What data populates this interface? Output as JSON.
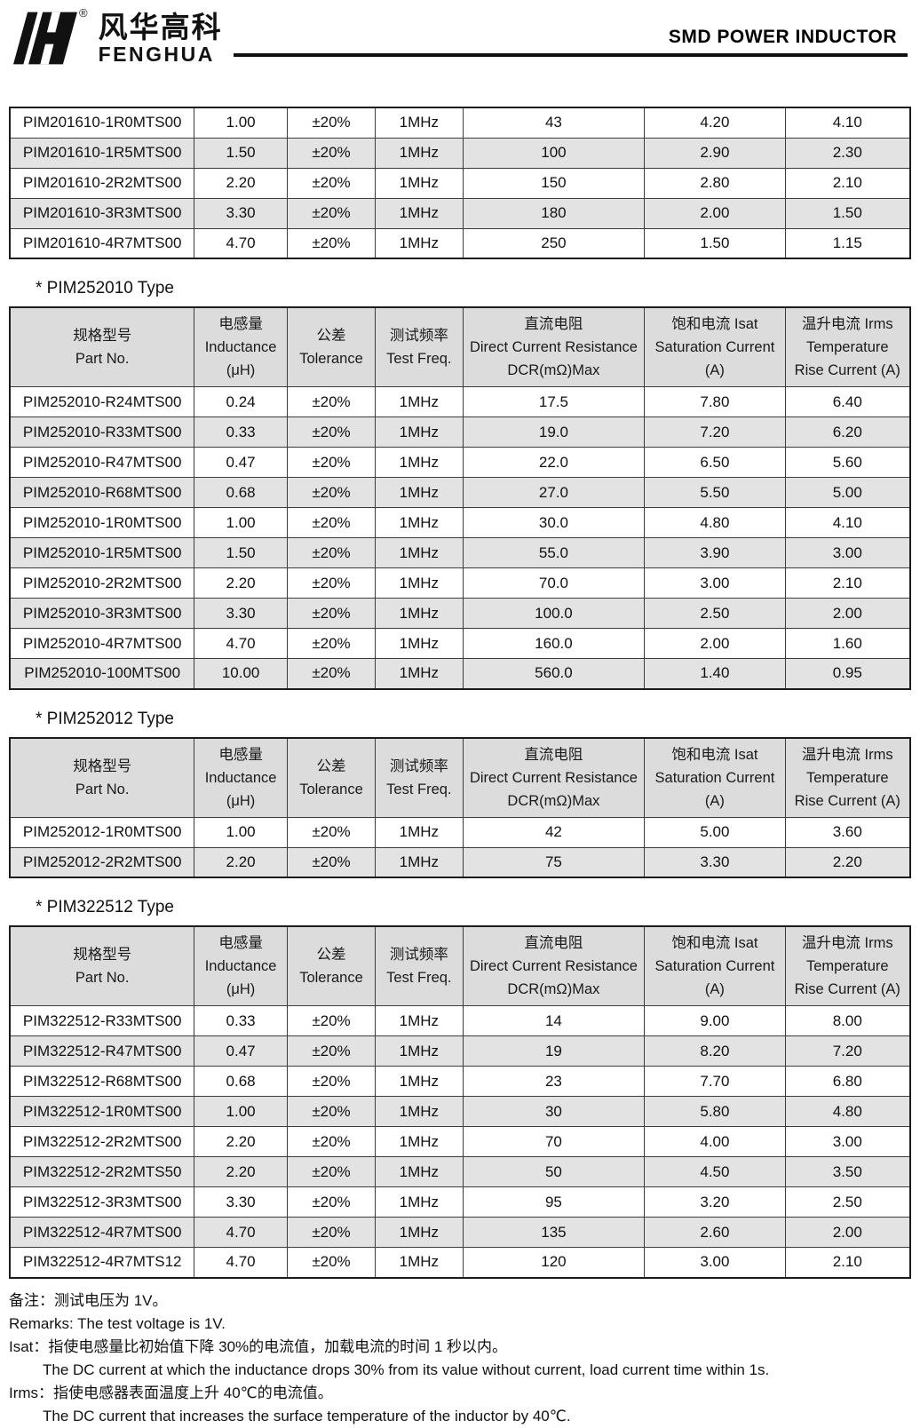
{
  "header": {
    "brand_cn": "风华高科",
    "brand_en": "FENGHUA",
    "registered_mark": "®",
    "title": "SMD POWER INDUCTOR"
  },
  "columns": [
    {
      "key": "part-no",
      "lines": [
        "规格型号",
        "Part No."
      ]
    },
    {
      "key": "inductance",
      "lines": [
        "电感量",
        "Inductance",
        "(μH)"
      ]
    },
    {
      "key": "tolerance",
      "lines": [
        "公差",
        "Tolerance"
      ]
    },
    {
      "key": "test-freq",
      "lines": [
        "测试频率",
        "Test Freq."
      ]
    },
    {
      "key": "dcr",
      "lines": [
        "直流电阻",
        "Direct Current Resistance",
        "DCR(mΩ)Max"
      ]
    },
    {
      "key": "isat",
      "lines": [
        "饱和电流  Isat",
        "Saturation Current",
        "(A)"
      ]
    },
    {
      "key": "irms",
      "lines": [
        "温升电流  Irms",
        "Temperature",
        "Rise Current (A)"
      ]
    }
  ],
  "tables": [
    {
      "title": null,
      "has_header": false,
      "rows": [
        [
          "PIM201610-1R0MTS00",
          "1.00",
          "±20%",
          "1MHz",
          "43",
          "4.20",
          "4.10"
        ],
        [
          "PIM201610-1R5MTS00",
          "1.50",
          "±20%",
          "1MHz",
          "100",
          "2.90",
          "2.30"
        ],
        [
          "PIM201610-2R2MTS00",
          "2.20",
          "±20%",
          "1MHz",
          "150",
          "2.80",
          "2.10"
        ],
        [
          "PIM201610-3R3MTS00",
          "3.30",
          "±20%",
          "1MHz",
          "180",
          "2.00",
          "1.50"
        ],
        [
          "PIM201610-4R7MTS00",
          "4.70",
          "±20%",
          "1MHz",
          "250",
          "1.50",
          "1.15"
        ]
      ]
    },
    {
      "title": "*  PIM252010 Type",
      "has_header": true,
      "rows": [
        [
          "PIM252010-R24MTS00",
          "0.24",
          "±20%",
          "1MHz",
          "17.5",
          "7.80",
          "6.40"
        ],
        [
          "PIM252010-R33MTS00",
          "0.33",
          "±20%",
          "1MHz",
          "19.0",
          "7.20",
          "6.20"
        ],
        [
          "PIM252010-R47MTS00",
          "0.47",
          "±20%",
          "1MHz",
          "22.0",
          "6.50",
          "5.60"
        ],
        [
          "PIM252010-R68MTS00",
          "0.68",
          "±20%",
          "1MHz",
          "27.0",
          "5.50",
          "5.00"
        ],
        [
          "PIM252010-1R0MTS00",
          "1.00",
          "±20%",
          "1MHz",
          "30.0",
          "4.80",
          "4.10"
        ],
        [
          "PIM252010-1R5MTS00",
          "1.50",
          "±20%",
          "1MHz",
          "55.0",
          "3.90",
          "3.00"
        ],
        [
          "PIM252010-2R2MTS00",
          "2.20",
          "±20%",
          "1MHz",
          "70.0",
          "3.00",
          "2.10"
        ],
        [
          "PIM252010-3R3MTS00",
          "3.30",
          "±20%",
          "1MHz",
          "100.0",
          "2.50",
          "2.00"
        ],
        [
          "PIM252010-4R7MTS00",
          "4.70",
          "±20%",
          "1MHz",
          "160.0",
          "2.00",
          "1.60"
        ],
        [
          "PIM252010-100MTS00",
          "10.00",
          "±20%",
          "1MHz",
          "560.0",
          "1.40",
          "0.95"
        ]
      ]
    },
    {
      "title": "*  PIM252012 Type",
      "has_header": true,
      "rows": [
        [
          "PIM252012-1R0MTS00",
          "1.00",
          "±20%",
          "1MHz",
          "42",
          "5.00",
          "3.60"
        ],
        [
          "PIM252012-2R2MTS00",
          "2.20",
          "±20%",
          "1MHz",
          "75",
          "3.30",
          "2.20"
        ]
      ]
    },
    {
      "title": "*  PIM322512 Type",
      "has_header": true,
      "rows": [
        [
          "PIM322512-R33MTS00",
          "0.33",
          "±20%",
          "1MHz",
          "14",
          "9.00",
          "8.00"
        ],
        [
          "PIM322512-R47MTS00",
          "0.47",
          "±20%",
          "1MHz",
          "19",
          "8.20",
          "7.20"
        ],
        [
          "PIM322512-R68MTS00",
          "0.68",
          "±20%",
          "1MHz",
          "23",
          "7.70",
          "6.80"
        ],
        [
          "PIM322512-1R0MTS00",
          "1.00",
          "±20%",
          "1MHz",
          "30",
          "5.80",
          "4.80"
        ],
        [
          "PIM322512-2R2MTS00",
          "2.20",
          "±20%",
          "1MHz",
          "70",
          "4.00",
          "3.00"
        ],
        [
          "PIM322512-2R2MTS50",
          "2.20",
          "±20%",
          "1MHz",
          "50",
          "4.50",
          "3.50"
        ],
        [
          "PIM322512-3R3MTS00",
          "3.30",
          "±20%",
          "1MHz",
          "95",
          "3.20",
          "2.50"
        ],
        [
          "PIM322512-4R7MTS00",
          "4.70",
          "±20%",
          "1MHz",
          "135",
          "2.60",
          "2.00"
        ],
        [
          "PIM322512-4R7MTS12",
          "4.70",
          "±20%",
          "1MHz",
          "120",
          "3.00",
          "2.10"
        ]
      ]
    }
  ],
  "footnotes": [
    {
      "text": "备注：测试电压为 1V。",
      "indent": false
    },
    {
      "text": "Remarks: The test voltage is 1V.",
      "indent": false
    },
    {
      "text": "Isat：指使电感量比初始值下降 30%的电流值，加载电流的时间 1 秒以内。",
      "indent": false
    },
    {
      "text": "The DC current at which the inductance drops 30% from its value without current, load current time within 1s.",
      "indent": true
    },
    {
      "text": "Irms：指使电感器表面温度上升 40℃的电流值。",
      "indent": false
    },
    {
      "text": "The DC current that increases the surface temperature of the inductor by 40℃.",
      "indent": true
    }
  ],
  "colors": {
    "header_cell_bg": "#dcdcdc",
    "stripe_row_bg": "#e3e3e3",
    "border": "#3c3c3c",
    "text": "#111111"
  }
}
